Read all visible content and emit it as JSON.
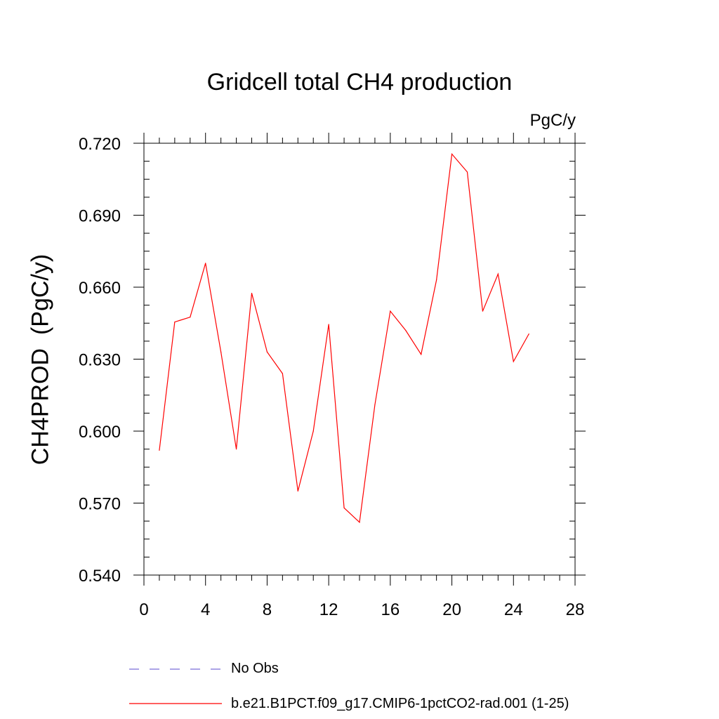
{
  "chart_data": {
    "type": "line",
    "title": "Gridcell total CH4 production",
    "units_label": "PgC/y",
    "ylabel": "CH4PROD  (PgC/y)",
    "xlabel": "",
    "xlim": [
      0,
      28
    ],
    "ylim": [
      0.54,
      0.72
    ],
    "x_ticks": [
      0,
      4,
      8,
      12,
      16,
      20,
      24,
      28
    ],
    "x_tick_labels": [
      "0",
      "4",
      "8",
      "12",
      "16",
      "20",
      "24",
      "28"
    ],
    "y_ticks": [
      0.54,
      0.57,
      0.6,
      0.63,
      0.66,
      0.69,
      0.72
    ],
    "y_tick_labels": [
      "0.540",
      "0.570",
      "0.600",
      "0.630",
      "0.660",
      "0.690",
      "0.720"
    ],
    "grid": false,
    "legend_position": "bottom",
    "series": [
      {
        "name": "b.e21.B1PCT.f09_g17.CMIP6-1pctCO2-rad.001 (1-25)",
        "color": "#ff0000",
        "style": "solid",
        "x": [
          1,
          2,
          3,
          4,
          5,
          6,
          7,
          8,
          9,
          10,
          11,
          12,
          13,
          14,
          15,
          16,
          17,
          18,
          19,
          20,
          21,
          22,
          23,
          24,
          25
        ],
        "values": [
          0.592,
          0.6455,
          0.6475,
          0.67,
          0.633,
          0.5925,
          0.6575,
          0.633,
          0.624,
          0.575,
          0.6,
          0.6445,
          0.568,
          0.562,
          0.611,
          0.65,
          0.642,
          0.632,
          0.663,
          0.7155,
          0.708,
          0.65,
          0.6655,
          0.629,
          0.6405
        ]
      }
    ],
    "legend": [
      {
        "label": "No Obs",
        "color": "#7b6ed6",
        "style": "dashed"
      },
      {
        "label": "b.e21.B1PCT.f09_g17.CMIP6-1pctCO2-rad.001 (1-25)",
        "color": "#ff0000",
        "style": "solid"
      }
    ]
  }
}
